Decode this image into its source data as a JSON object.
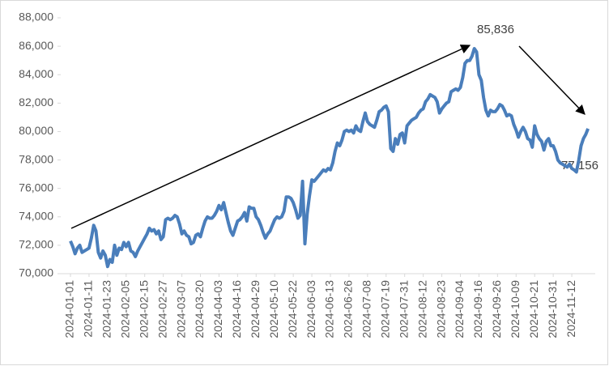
{
  "chart_data": {
    "type": "line",
    "categories": [
      "2024-01-01",
      null,
      null,
      null,
      null,
      null,
      null,
      null,
      "2024-01-11",
      null,
      null,
      null,
      null,
      null,
      null,
      null,
      "2024-01-23",
      null,
      null,
      null,
      null,
      null,
      null,
      null,
      "2024-02-05",
      null,
      null,
      null,
      null,
      null,
      null,
      null,
      "2024-02-15",
      null,
      null,
      null,
      null,
      null,
      null,
      null,
      "2024-02-27",
      null,
      null,
      null,
      null,
      null,
      null,
      null,
      "2024-03-07",
      null,
      null,
      null,
      null,
      null,
      null,
      null,
      "2024-03-20",
      null,
      null,
      null,
      null,
      null,
      null,
      null,
      "2024-04-03",
      null,
      null,
      null,
      null,
      null,
      null,
      null,
      "2024-04-16",
      null,
      null,
      null,
      null,
      null,
      null,
      null,
      "2024-04-29",
      null,
      null,
      null,
      null,
      null,
      null,
      null,
      "2024-05-10",
      null,
      null,
      null,
      null,
      null,
      null,
      null,
      "2024-05-22",
      null,
      null,
      null,
      null,
      null,
      null,
      null,
      "2024-06-03",
      null,
      null,
      null,
      null,
      null,
      null,
      null,
      "2024-06-13",
      null,
      null,
      null,
      null,
      null,
      null,
      null,
      "2024-06-26",
      null,
      null,
      null,
      null,
      null,
      null,
      null,
      "2024-07-08",
      null,
      null,
      null,
      null,
      null,
      null,
      null,
      "2024-07-19",
      null,
      null,
      null,
      null,
      null,
      null,
      null,
      "2024-07-31",
      null,
      null,
      null,
      null,
      null,
      null,
      null,
      "2024-08-12",
      null,
      null,
      null,
      null,
      null,
      null,
      null,
      "2024-08-23",
      null,
      null,
      null,
      null,
      null,
      null,
      null,
      "2024-09-04",
      null,
      null,
      null,
      null,
      null,
      null,
      null,
      "2024-09-16",
      null,
      null,
      null,
      null,
      null,
      null,
      null,
      "2024-09-26",
      null,
      null,
      null,
      null,
      null,
      null,
      null,
      "2024-10-09",
      null,
      null,
      null,
      null,
      null,
      null,
      null,
      "2024-10-21",
      null,
      null,
      null,
      null,
      null,
      null,
      null,
      "2024-10-31",
      null,
      null,
      null,
      null,
      null,
      null,
      null,
      "2024-11-12",
      null,
      null,
      null,
      null,
      null,
      null,
      null
    ],
    "values": [
      72300,
      71900,
      71400,
      71800,
      72000,
      71500,
      71600,
      71700,
      71800,
      72500,
      73400,
      73000,
      71500,
      71100,
      71600,
      71300,
      70500,
      71000,
      70800,
      72000,
      71300,
      71800,
      71700,
      72200,
      71900,
      72200,
      71600,
      71500,
      71200,
      71600,
      71900,
      72200,
      72500,
      72800,
      73200,
      73000,
      73100,
      72800,
      73000,
      72400,
      72600,
      73800,
      73900,
      73800,
      73900,
      74100,
      74000,
      73500,
      72800,
      73000,
      72700,
      72600,
      72100,
      72200,
      72700,
      72800,
      72600,
      73200,
      73700,
      74000,
      73900,
      73900,
      74100,
      74400,
      74800,
      74500,
      75000,
      74300,
      73600,
      73000,
      72700,
      73200,
      73700,
      73800,
      74000,
      74300,
      73700,
      74700,
      74600,
      74600,
      74000,
      73800,
      73400,
      72900,
      72500,
      72800,
      73000,
      73400,
      73800,
      74000,
      73900,
      74000,
      74400,
      75400,
      75400,
      75300,
      75000,
      74500,
      73900,
      74100,
      76500,
      72100,
      74200,
      75500,
      76600,
      76500,
      76700,
      76900,
      77100,
      77300,
      77200,
      77400,
      77300,
      77800,
      78600,
      79200,
      79000,
      79400,
      80000,
      80100,
      80000,
      80100,
      79900,
      80400,
      80100,
      80000,
      80700,
      81300,
      80700,
      80500,
      80400,
      80300,
      80800,
      81400,
      81500,
      81700,
      81800,
      81400,
      78800,
      78600,
      79500,
      79100,
      79800,
      79900,
      79200,
      80400,
      80600,
      80800,
      80900,
      81000,
      81300,
      81500,
      81600,
      82100,
      82300,
      82600,
      82500,
      82400,
      82100,
      81300,
      81600,
      81800,
      82000,
      82100,
      82800,
      82900,
      83000,
      82900,
      83100,
      83800,
      84800,
      85000,
      85000,
      85300,
      85836,
      85600,
      84000,
      83600,
      82400,
      81500,
      81100,
      81500,
      81400,
      81400,
      81600,
      81900,
      81800,
      81500,
      81100,
      81200,
      81100,
      80500,
      80100,
      79600,
      80000,
      80300,
      80000,
      79500,
      79400,
      78900,
      80400,
      79800,
      79500,
      79300,
      78700,
      79300,
      79500,
      79000,
      79000,
      78600,
      78000,
      77800,
      77700,
      77600,
      77500,
      77700,
      77400,
      77300,
      77156,
      78000,
      79000,
      79500,
      79800,
      80200
    ],
    "color": "#4a7ebb",
    "ylim": [
      70000,
      88000
    ],
    "yticks": [
      {
        "value": 70000,
        "label": "70,000"
      },
      {
        "value": 72000,
        "label": "72,000"
      },
      {
        "value": 74000,
        "label": "74,000"
      },
      {
        "value": 76000,
        "label": "76,000"
      },
      {
        "value": 78000,
        "label": "78,000"
      },
      {
        "value": 80000,
        "label": "80,000"
      },
      {
        "value": 82000,
        "label": "82,000"
      },
      {
        "value": 84000,
        "label": "84,000"
      },
      {
        "value": 86000,
        "label": "86,000"
      },
      {
        "value": 88000,
        "label": "88,000"
      }
    ],
    "annotations": [
      "85,836",
      "77,156"
    ]
  }
}
